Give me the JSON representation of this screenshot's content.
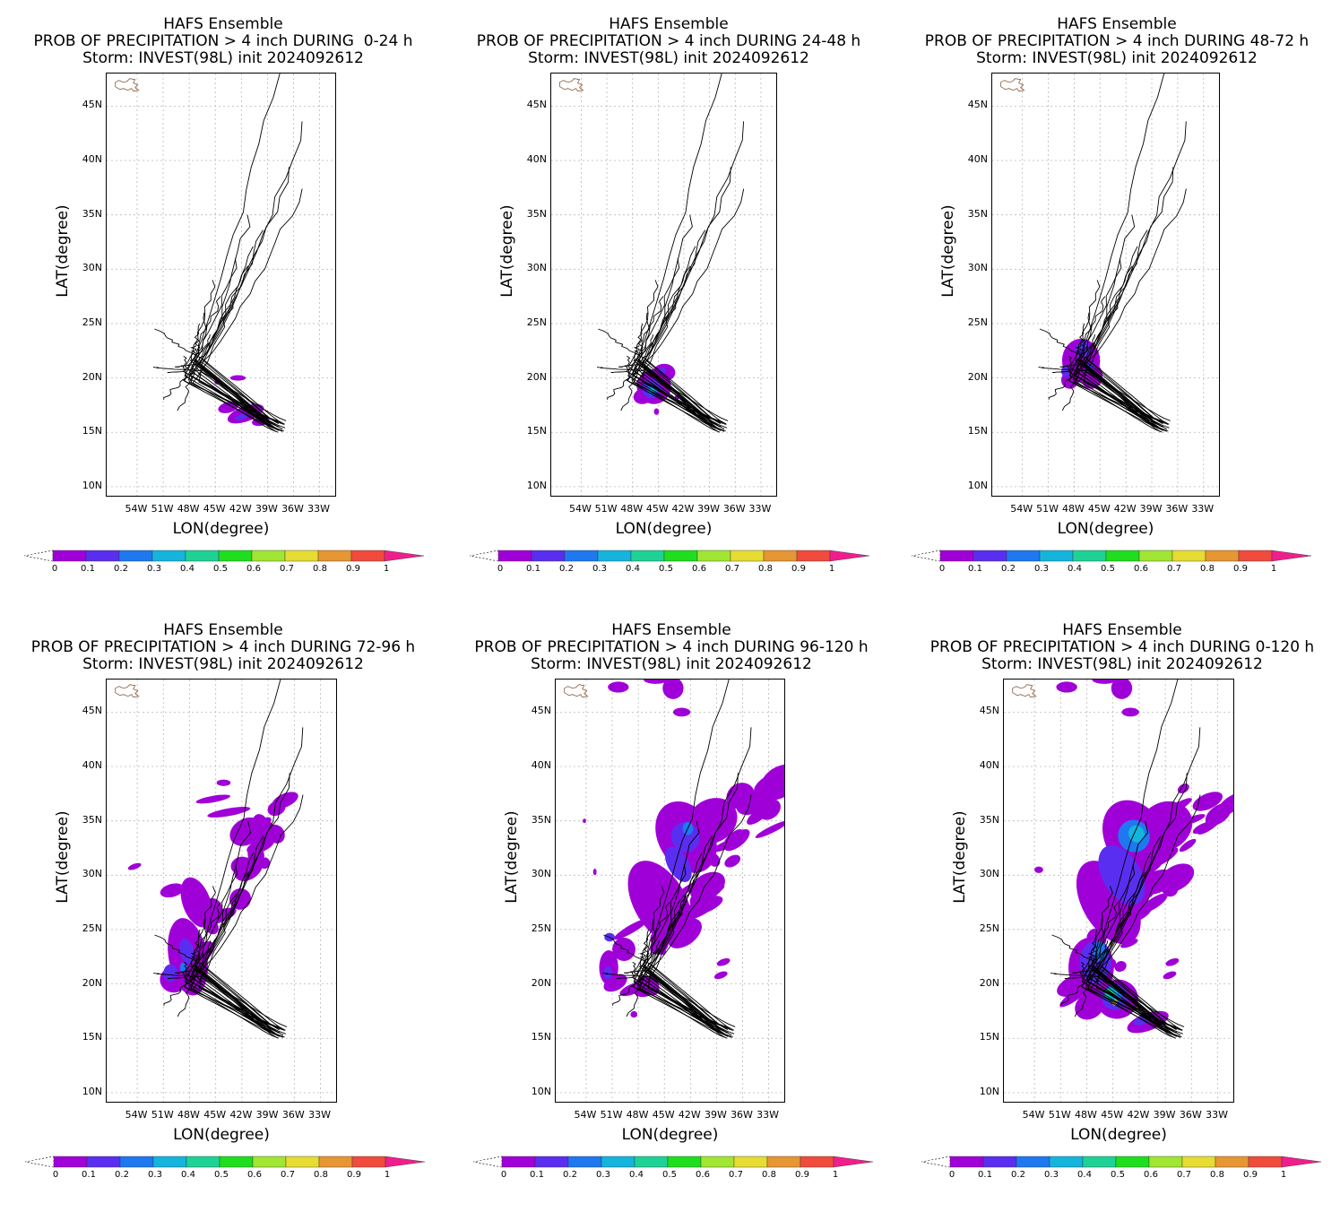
{
  "common": {
    "heading": "HAFS Ensemble",
    "storm_line": "Storm: INVEST(98L) init 2024092612",
    "x_axis_title": "LON(degree)",
    "y_axis_title": "LAT(degree)",
    "lat_ticks": [
      "45N",
      "40N",
      "35N",
      "30N",
      "25N",
      "20N",
      "15N",
      "10N"
    ],
    "lon_ticks": [
      "54W",
      "51W",
      "48W",
      "45W",
      "42W",
      "39W",
      "36W",
      "33W"
    ],
    "colorbar_ticks": [
      "0",
      "0.1",
      "0.2",
      "0.3",
      "0.4",
      "0.5",
      "0.6",
      "0.7",
      "0.8",
      "0.9",
      "1"
    ],
    "colorbar_colors": [
      "#a000d8",
      "#5a2ef0",
      "#1e78f0",
      "#14b4dc",
      "#1ed296",
      "#1ede1e",
      "#a0e632",
      "#e6dc32",
      "#e69632",
      "#f04b3c",
      "#f01e8c"
    ]
  },
  "panels": [
    {
      "prob_line": "PROB OF PRECIPITATION > 4 inch DURING  0-24 h",
      "period": "0-24"
    },
    {
      "prob_line": "PROB OF PRECIPITATION > 4 inch DURING 24-48 h",
      "period": "24-48"
    },
    {
      "prob_line": "PROB OF PRECIPITATION > 4 inch DURING 48-72 h",
      "period": "48-72"
    },
    {
      "prob_line": "PROB OF PRECIPITATION > 4 inch DURING 72-96 h",
      "period": "72-96"
    },
    {
      "prob_line": "PROB OF PRECIPITATION > 4 inch DURING 96-120 h",
      "period": "96-120"
    },
    {
      "prob_line": "PROB OF PRECIPITATION > 4 inch DURING 0-120 h",
      "period": "0-120"
    }
  ]
}
